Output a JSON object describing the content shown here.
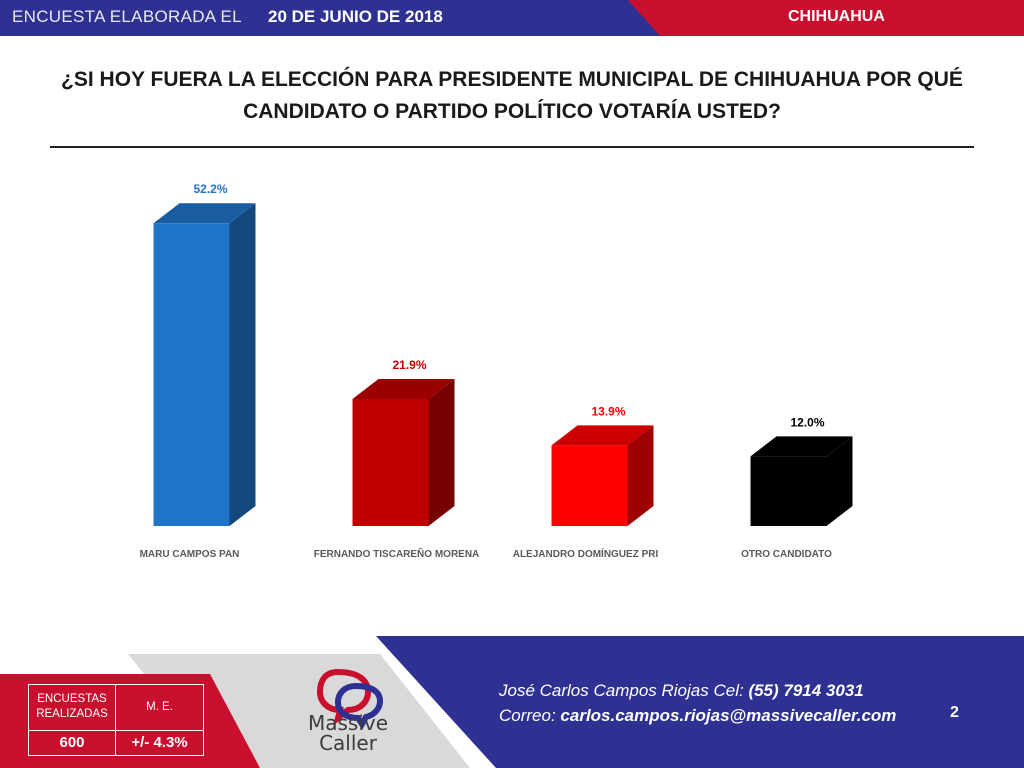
{
  "header": {
    "label": "ENCUESTA ELABORADA EL",
    "date": "20 DE JUNIO DE 2018",
    "region": "CHIHUAHUA"
  },
  "question": {
    "line1": "¿SI HOY FUERA LA ELECCIÓN PARA PRESIDENTE MUNICIPAL DE CHIHUAHUA POR QUÉ",
    "line2": "CANDIDATO O PARTIDO POLÍTICO VOTARÍA USTED?"
  },
  "chart_data": {
    "type": "bar",
    "style": "3d",
    "categories": [
      "MARU CAMPOS PAN",
      "FERNANDO TISCAREÑO MORENA",
      "ALEJANDRO DOMÍNGUEZ PRI",
      "OTRO CANDIDATO"
    ],
    "values": [
      52.2,
      21.9,
      13.9,
      12.0
    ],
    "value_labels": [
      "52.2%",
      "21.9%",
      "13.9%",
      "12.0%"
    ],
    "colors": [
      "#1f74c8",
      "#c00000",
      "#ff0000",
      "#000000"
    ],
    "label_colors": [
      "#1f74c8",
      "#c00000",
      "#ff0000",
      "#000000"
    ],
    "ylim": [
      0,
      60
    ],
    "grid": false,
    "legend": "none"
  },
  "stats": {
    "surveys_label": "ENCUESTAS REALIZADAS",
    "me_label": "M. E.",
    "surveys_value": "600",
    "me_value": "+/- 4.3%"
  },
  "logo": {
    "line1": "Massive",
    "line2": "Caller"
  },
  "contact": {
    "name_prefix": "José Carlos Campos Riojas Cel:",
    "phone": "(55) 7914 3031",
    "email_prefix": "Correo:",
    "email": "carlos.campos.riojas@massivecaller.com"
  },
  "page_number": "2",
  "theme": {
    "navy": "#2e3192",
    "red": "#c8102e",
    "grey": "#d9d9d9"
  }
}
